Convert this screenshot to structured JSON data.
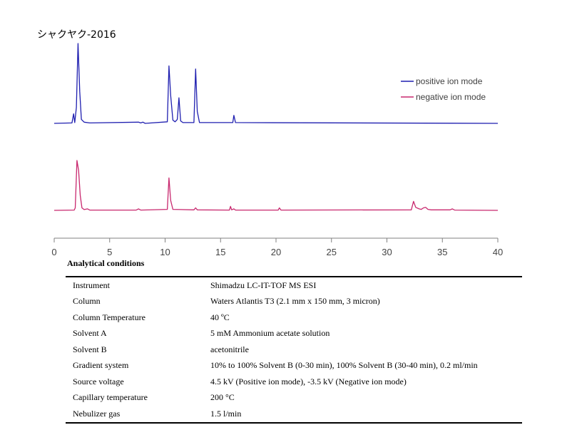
{
  "title": "シャクヤク-2016",
  "colors": {
    "positive": "#1f1fb0",
    "negative": "#c8286e",
    "axis": "#808080",
    "tick_label": "#444444"
  },
  "chart_data": {
    "type": "line",
    "title": "シャクヤク-2016",
    "xlabel": "",
    "ylabel": "",
    "xlim": [
      0,
      40
    ],
    "x_ticks": [
      0,
      5,
      10,
      15,
      20,
      25,
      30,
      35,
      40
    ],
    "grid": false,
    "legend_position": "top-right",
    "series": [
      {
        "name": "positive ion mode",
        "points": [
          [
            0.0,
            0
          ],
          [
            1.6,
            0.5
          ],
          [
            1.75,
            12
          ],
          [
            1.85,
            1
          ],
          [
            2.0,
            20
          ],
          [
            2.15,
            100
          ],
          [
            2.3,
            40
          ],
          [
            2.45,
            5
          ],
          [
            2.7,
            1.5
          ],
          [
            3.2,
            0.5
          ],
          [
            7.6,
            1.5
          ],
          [
            7.8,
            0.5
          ],
          [
            8.0,
            1.5
          ],
          [
            8.2,
            0
          ],
          [
            10.2,
            2
          ],
          [
            10.35,
            72
          ],
          [
            10.5,
            35
          ],
          [
            10.7,
            4
          ],
          [
            10.9,
            2
          ],
          [
            11.1,
            5
          ],
          [
            11.25,
            32
          ],
          [
            11.4,
            3
          ],
          [
            11.6,
            1
          ],
          [
            12.6,
            1
          ],
          [
            12.75,
            68
          ],
          [
            12.9,
            15
          ],
          [
            13.1,
            1
          ],
          [
            16.1,
            1
          ],
          [
            16.2,
            10
          ],
          [
            16.35,
            1
          ],
          [
            40.0,
            0
          ]
        ]
      },
      {
        "name": "negative ion mode",
        "points": [
          [
            0.0,
            0
          ],
          [
            1.8,
            0.5
          ],
          [
            1.9,
            5
          ],
          [
            2.05,
            100
          ],
          [
            2.2,
            80
          ],
          [
            2.35,
            30
          ],
          [
            2.5,
            5
          ],
          [
            2.7,
            1.5
          ],
          [
            3.0,
            3
          ],
          [
            3.2,
            0.5
          ],
          [
            7.4,
            0.5
          ],
          [
            7.6,
            3
          ],
          [
            7.8,
            0.5
          ],
          [
            10.2,
            2
          ],
          [
            10.35,
            65
          ],
          [
            10.5,
            20
          ],
          [
            10.7,
            2
          ],
          [
            12.6,
            1
          ],
          [
            12.75,
            5
          ],
          [
            12.9,
            1
          ],
          [
            15.8,
            0.5
          ],
          [
            15.9,
            8
          ],
          [
            16.0,
            1
          ],
          [
            16.2,
            3
          ],
          [
            16.35,
            0.5
          ],
          [
            20.2,
            0.5
          ],
          [
            20.3,
            5
          ],
          [
            20.45,
            0.5
          ],
          [
            32.2,
            1
          ],
          [
            32.4,
            18
          ],
          [
            32.6,
            6
          ],
          [
            32.9,
            3
          ],
          [
            33.1,
            2
          ],
          [
            33.3,
            5
          ],
          [
            33.5,
            6
          ],
          [
            33.7,
            2
          ],
          [
            34.0,
            1
          ],
          [
            35.7,
            1
          ],
          [
            35.9,
            3
          ],
          [
            36.1,
            0.5
          ],
          [
            40.0,
            0
          ]
        ]
      }
    ]
  },
  "conditions": {
    "heading": "Analytical conditions",
    "rows": [
      [
        "Instrument",
        "Shimadzu LC-IT-TOF MS ESI"
      ],
      [
        "Column",
        "Waters Atlantis T3 (2.1 mm x 150 mm, 3 micron)"
      ],
      [
        "Column Temperature",
        "40 ºC"
      ],
      [
        "Solvent A",
        "5 mM Ammonium acetate solution"
      ],
      [
        "Solvent B",
        "acetonitrile"
      ],
      [
        "Gradient system",
        "10% to 100% Solvent B (0-30 min), 100% Solvent B (30-40 min), 0.2 ml/min"
      ],
      [
        "Source voltage",
        "4.5 kV (Positive ion mode), -3.5 kV (Negative ion mode)"
      ],
      [
        "Capillary temperature",
        "200 °C"
      ],
      [
        "Nebulizer gas",
        "1.5 l/min"
      ]
    ]
  }
}
